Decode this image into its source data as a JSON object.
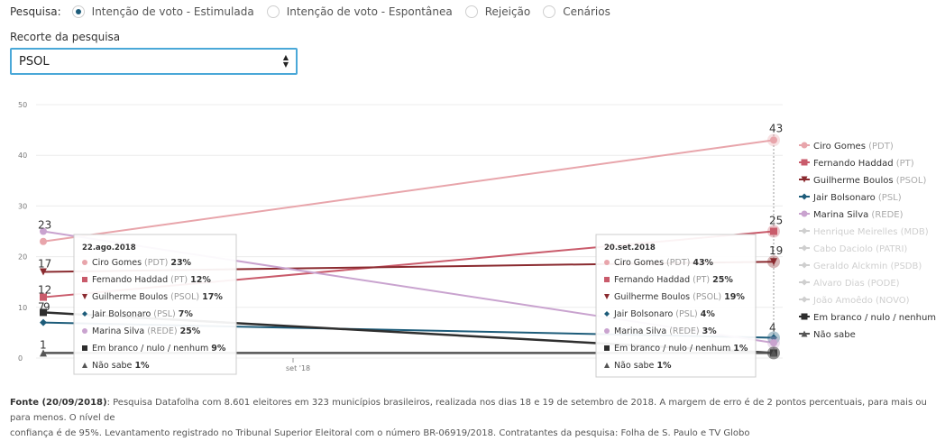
{
  "filters": {
    "label": "Pesquisa:",
    "options": [
      {
        "label": "Intenção de voto - Estimulada",
        "selected": true
      },
      {
        "label": "Intenção de voto - Espontânea",
        "selected": false
      },
      {
        "label": "Rejeição",
        "selected": false
      },
      {
        "label": "Cenários",
        "selected": false
      }
    ]
  },
  "recorte": {
    "label": "Recorte da pesquisa",
    "value": "PSOL"
  },
  "colors": {
    "ciro": "#e8a5ab",
    "haddad": "#c95b6b",
    "boulos": "#8a2a2f",
    "bolsonaro": "#1d5c7a",
    "marina": "#c9a3cf",
    "branco": "#2e2e2e",
    "naosabe": "#555555",
    "inactive": "#cfcfcf",
    "party": "#aaaaaa"
  },
  "chart_data": {
    "type": "line",
    "x": [
      "22.ago.2018",
      "20.set.2018"
    ],
    "x_tick_labels": [
      "set '18"
    ],
    "ylim": [
      0,
      50
    ],
    "y_ticks": [
      0,
      10,
      20,
      30,
      40,
      50
    ],
    "series": [
      {
        "name": "Ciro Gomes",
        "party": "(PDT)",
        "values": [
          23,
          43
        ],
        "marker": "circle",
        "color_key": "ciro"
      },
      {
        "name": "Fernando Haddad",
        "party": "(PT)",
        "values": [
          12,
          25
        ],
        "marker": "square",
        "color_key": "haddad"
      },
      {
        "name": "Guilherme Boulos",
        "party": "(PSOL)",
        "values": [
          17,
          19
        ],
        "marker": "triangle-down",
        "color_key": "boulos"
      },
      {
        "name": "Jair Bolsonaro",
        "party": "(PSL)",
        "values": [
          7,
          4
        ],
        "marker": "diamond",
        "color_key": "bolsonaro"
      },
      {
        "name": "Marina Silva",
        "party": "(REDE)",
        "values": [
          25,
          3
        ],
        "marker": "circle",
        "color_key": "marina"
      },
      {
        "name": "Em branco / nulo / nenhum",
        "party": "",
        "values": [
          9,
          1
        ],
        "marker": "square",
        "color_key": "branco"
      },
      {
        "name": "Não sabe",
        "party": "",
        "values": [
          1,
          1
        ],
        "marker": "triangle-up",
        "color_key": "naosabe"
      }
    ],
    "inactive_legend": [
      {
        "name": "Henrique Meirelles",
        "party": "(MDB)"
      },
      {
        "name": "Cabo Daciolo",
        "party": "(PATRI)"
      },
      {
        "name": "Geraldo Alckmin",
        "party": "(PSDB)"
      },
      {
        "name": "Alvaro Dias",
        "party": "(PODE)"
      },
      {
        "name": "João Amoêdo",
        "party": "(NOVO)"
      }
    ],
    "legend_order": [
      "Ciro Gomes",
      "Fernando Haddad",
      "Guilherme Boulos",
      "Jair Bolsonaro",
      "Marina Silva",
      "Henrique Meirelles",
      "Cabo Daciolo",
      "Geraldo Alckmin",
      "Alvaro Dias",
      "João Amoêdo",
      "Em branco / nulo / nenhum",
      "Não sabe"
    ],
    "left_labels": [
      "23",
      "17",
      "12",
      "7",
      "9",
      "1"
    ],
    "right_labels": [
      "43",
      "25",
      "19",
      "4"
    ],
    "tooltips": [
      {
        "title": "22.ago.2018",
        "rows": [
          {
            "name": "Ciro Gomes",
            "party": "(PDT)",
            "value": "23%"
          },
          {
            "name": "Fernando Haddad",
            "party": "(PT)",
            "value": "12%"
          },
          {
            "name": "Guilherme Boulos",
            "party": "(PSOL)",
            "value": "17%"
          },
          {
            "name": "Jair Bolsonaro",
            "party": "(PSL)",
            "value": "7%"
          },
          {
            "name": "Marina Silva",
            "party": "(REDE)",
            "value": "25%"
          },
          {
            "name": "Em branco / nulo / nenhum",
            "party": "",
            "value": "9%"
          },
          {
            "name": "Não sabe",
            "party": "",
            "value": "1%"
          }
        ]
      },
      {
        "title": "20.set.2018",
        "rows": [
          {
            "name": "Ciro Gomes",
            "party": "(PDT)",
            "value": "43%"
          },
          {
            "name": "Fernando Haddad",
            "party": "(PT)",
            "value": "25%"
          },
          {
            "name": "Guilherme Boulos",
            "party": "(PSOL)",
            "value": "19%"
          },
          {
            "name": "Jair Bolsonaro",
            "party": "(PSL)",
            "value": "4%"
          },
          {
            "name": "Marina Silva",
            "party": "(REDE)",
            "value": "3%"
          },
          {
            "name": "Em branco / nulo / nenhum",
            "party": "",
            "value": "1%"
          },
          {
            "name": "Não sabe",
            "party": "",
            "value": "1%"
          }
        ]
      }
    ]
  },
  "footer": {
    "bold": "Fonte (20/09/2018)",
    "line1": ": Pesquisa Datafolha com 8.601 eleitores em 323 municípios brasileiros, realizada nos dias 18 e 19 de setembro de 2018. A margem de erro é de 2 pontos percentuais, para mais ou para menos. O nível de",
    "line2": "confiança é de 95%. Levantamento registrado no Tribunal Superior Eleitoral com o número BR-06919/2018. Contratantes da pesquisa: Folha de S. Paulo e TV Globo"
  }
}
